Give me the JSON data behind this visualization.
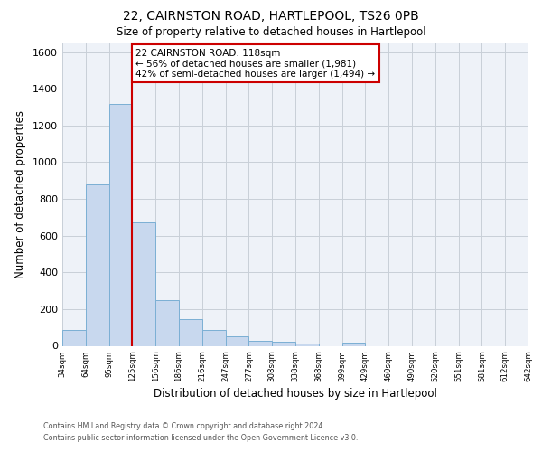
{
  "title": "22, CAIRNSTON ROAD, HARTLEPOOL, TS26 0PB",
  "subtitle": "Size of property relative to detached houses in Hartlepool",
  "xlabel": "Distribution of detached houses by size in Hartlepool",
  "ylabel": "Number of detached properties",
  "bar_values": [
    85,
    880,
    1320,
    670,
    250,
    145,
    85,
    50,
    25,
    20,
    10,
    0,
    15,
    0,
    0,
    0,
    0,
    0,
    0,
    0
  ],
  "bin_labels": [
    "34sqm",
    "64sqm",
    "95sqm",
    "125sqm",
    "156sqm",
    "186sqm",
    "216sqm",
    "247sqm",
    "277sqm",
    "308sqm",
    "338sqm",
    "368sqm",
    "399sqm",
    "429sqm",
    "460sqm",
    "490sqm",
    "520sqm",
    "551sqm",
    "581sqm",
    "612sqm",
    "642sqm"
  ],
  "bar_color": "#c8d8ee",
  "bar_edge_color": "#7bafd4",
  "vline_x": 3,
  "vline_color": "#cc0000",
  "annotation_title": "22 CAIRNSTON ROAD: 118sqm",
  "annotation_line1": "← 56% of detached houses are smaller (1,981)",
  "annotation_line2": "42% of semi-detached houses are larger (1,494) →",
  "annotation_box_color": "#cc0000",
  "ylim": [
    0,
    1650
  ],
  "yticks": [
    0,
    200,
    400,
    600,
    800,
    1000,
    1200,
    1400,
    1600
  ],
  "footer1": "Contains HM Land Registry data © Crown copyright and database right 2024.",
  "footer2": "Contains public sector information licensed under the Open Government Licence v3.0.",
  "background_color": "#ffffff",
  "plot_bg_color": "#eef2f8",
  "grid_color": "#c8cfd8"
}
